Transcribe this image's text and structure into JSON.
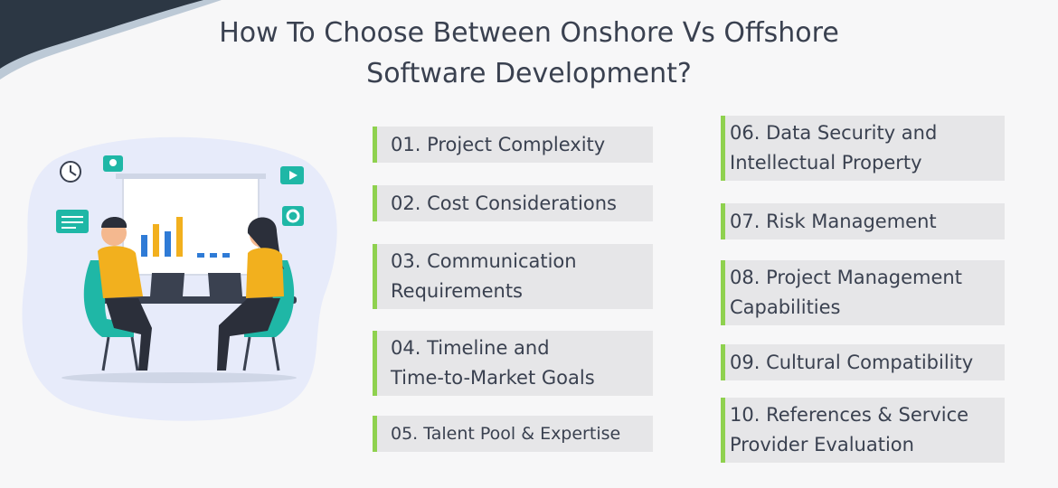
{
  "title": {
    "line1": "How To Choose Between Onshore Vs Offshore",
    "line2": "Software Development?"
  },
  "colors": {
    "background": "#f7f7f8",
    "card": "#e6e6e8",
    "accent": "#8fd14f",
    "text": "#3a4150",
    "corner": "#2c3744"
  },
  "illustration": {
    "icons": [
      "clock-icon",
      "location-pin-icon",
      "play-icon",
      "gear-icon",
      "document-icon",
      "bar-chart-icon",
      "laptop-icon"
    ]
  },
  "factors_left": [
    {
      "label": "01. Project Complexity"
    },
    {
      "label": "02. Cost Considerations"
    },
    {
      "label": "03. Communication\nRequirements"
    },
    {
      "label": "04. Timeline and\nTime-to-Market Goals"
    },
    {
      "label": "05. Talent Pool & Expertise"
    }
  ],
  "factors_right": [
    {
      "label": "06. Data Security and\nIntellectual Property"
    },
    {
      "label": "07. Risk Management"
    },
    {
      "label": "08. Project Management\nCapabilities"
    },
    {
      "label": "09. Cultural Compatibility"
    },
    {
      "label": "10. References & Service\nProvider Evaluation"
    }
  ]
}
